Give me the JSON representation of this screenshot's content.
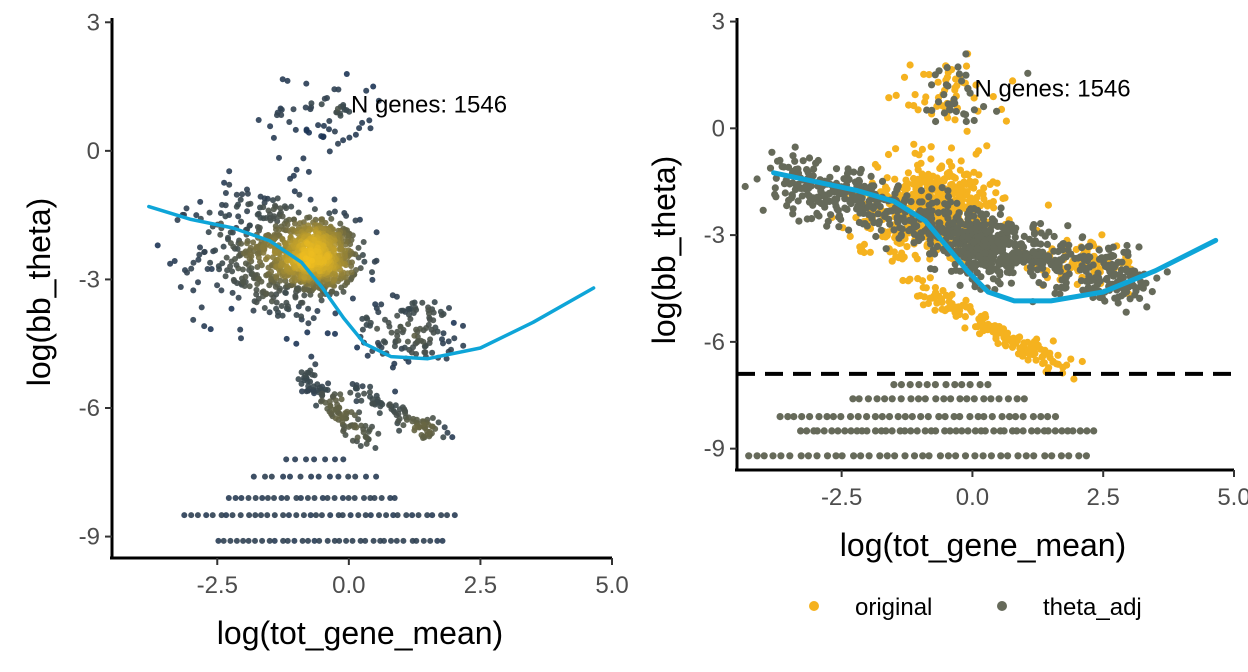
{
  "chart_data": [
    {
      "type": "scatter",
      "panel": "left",
      "xlabel": "log(tot_gene_mean)",
      "ylabel": "log(bb_theta)",
      "xlim": [
        -4.5,
        5.0
      ],
      "ylim": [
        -9.5,
        3.1
      ],
      "x_ticks": [
        -2.5,
        0.0,
        2.5,
        5.0
      ],
      "x_tick_labels": [
        "-2.5",
        "0.0",
        "2.5",
        "5.0"
      ],
      "y_ticks": [
        3,
        0,
        -3,
        -6,
        -9
      ],
      "y_tick_labels": [
        "3",
        "0",
        "-3",
        "-6",
        "-9"
      ],
      "annotation": {
        "text": "N genes: 1546",
        "x": 0.04,
        "y": 0.9
      },
      "point_color_low": "#1d3557",
      "point_color_high": "#f2c01e",
      "color_encoding": "point density",
      "trend_color": "#0ea5d8",
      "trend": [
        {
          "x": -3.8,
          "y": -1.3
        },
        {
          "x": -3.0,
          "y": -1.6
        },
        {
          "x": -2.2,
          "y": -1.8
        },
        {
          "x": -1.5,
          "y": -2.1
        },
        {
          "x": -0.9,
          "y": -2.6
        },
        {
          "x": -0.5,
          "y": -3.2
        },
        {
          "x": -0.1,
          "y": -3.9
        },
        {
          "x": 0.3,
          "y": -4.5
        },
        {
          "x": 0.8,
          "y": -4.8
        },
        {
          "x": 1.5,
          "y": -4.85
        },
        {
          "x": 2.5,
          "y": -4.6
        },
        {
          "x": 3.5,
          "y": -4.0
        },
        {
          "x": 4.65,
          "y": -3.2
        }
      ],
      "clusters": [
        {
          "cx": -0.6,
          "cy": -2.5,
          "sx": 0.75,
          "sy": 0.9,
          "n": 650,
          "kind": "blob"
        },
        {
          "cx": -1.6,
          "cy": -2.4,
          "sx": 1.3,
          "sy": 1.6,
          "n": 380,
          "kind": "blob"
        },
        {
          "cx": 1.2,
          "cy": -4.2,
          "sx": 1.2,
          "sy": 0.8,
          "n": 120,
          "kind": "blob"
        },
        {
          "x0": -0.9,
          "y0": -5.2,
          "x1": 0.4,
          "y1": -6.8,
          "n": 110,
          "kind": "line",
          "jitter": 0.12
        },
        {
          "x0": 0.0,
          "y0": -5.5,
          "x1": 1.8,
          "y1": -6.7,
          "n": 90,
          "kind": "line",
          "jitter": 0.1
        },
        {
          "cx": -0.5,
          "cy": 0.8,
          "sx": 1.2,
          "sy": 1.1,
          "n": 60,
          "kind": "blob"
        }
      ],
      "discrete_rows": [
        {
          "y": -9.1,
          "xmin": -2.5,
          "xmax": 1.8,
          "n": 36
        },
        {
          "y": -8.5,
          "xmin": -3.1,
          "xmax": 2.0,
          "n": 40
        },
        {
          "y": -8.1,
          "xmin": -2.3,
          "xmax": 0.9,
          "n": 26
        },
        {
          "y": -7.6,
          "xmin": -1.8,
          "xmax": 0.5,
          "n": 14
        },
        {
          "y": -7.2,
          "xmin": -1.2,
          "xmax": -0.1,
          "n": 7
        }
      ]
    },
    {
      "type": "scatter",
      "panel": "right",
      "xlabel": "log(tot_gene_mean)",
      "ylabel": "log(bb_theta)",
      "xlim": [
        -4.5,
        5.0
      ],
      "ylim": [
        -9.6,
        3.1
      ],
      "x_ticks": [
        -2.5,
        0.0,
        2.5,
        5.0
      ],
      "x_tick_labels": [
        "-2.5",
        "0.0",
        "2.5",
        "5.0"
      ],
      "y_ticks": [
        3,
        0,
        -3,
        -6,
        -9
      ],
      "y_tick_labels": [
        "3",
        "0",
        "-3",
        "-6",
        "-9"
      ],
      "annotation": {
        "text": "N genes: 1546",
        "x": 0.04,
        "y": 0.9
      },
      "threshold_line": {
        "y": -6.9,
        "style": "dashed"
      },
      "trend_color": "#0ea5d8",
      "trend": [
        {
          "x": -3.8,
          "y": -1.25
        },
        {
          "x": -3.0,
          "y": -1.5
        },
        {
          "x": -2.2,
          "y": -1.75
        },
        {
          "x": -1.5,
          "y": -2.05
        },
        {
          "x": -0.9,
          "y": -2.6
        },
        {
          "x": -0.5,
          "y": -3.3
        },
        {
          "x": -0.1,
          "y": -4.0
        },
        {
          "x": 0.3,
          "y": -4.6
        },
        {
          "x": 0.8,
          "y": -4.85
        },
        {
          "x": 1.5,
          "y": -4.85
        },
        {
          "x": 2.5,
          "y": -4.6
        },
        {
          "x": 3.5,
          "y": -4.0
        },
        {
          "x": 4.65,
          "y": -3.15
        }
      ],
      "series": [
        {
          "name": "original",
          "color": "#f5b21f",
          "clusters": [
            {
              "cx": -0.8,
              "cy": -2.3,
              "sx": 1.2,
              "sy": 1.3,
              "n": 600,
              "kind": "blob"
            },
            {
              "x0": -1.0,
              "y0": -4.5,
              "x1": 1.8,
              "y1": -6.8,
              "n": 160,
              "kind": "line",
              "jitter": 0.15
            },
            {
              "cx": 2.0,
              "cy": -3.8,
              "sx": 1.0,
              "sy": 0.6,
              "n": 90,
              "kind": "blob"
            },
            {
              "cx": -0.5,
              "cy": 1.0,
              "sx": 1.1,
              "sy": 0.9,
              "n": 50,
              "kind": "blob"
            }
          ]
        },
        {
          "name": "theta_adj",
          "color": "#666a5a",
          "clusters": [
            {
              "x0": -3.6,
              "y0": -1.4,
              "x1": 3.2,
              "y1": -4.4,
              "n": 700,
              "kind": "band",
              "jitter": 0.25
            },
            {
              "cx": 0.2,
              "cy": -3.4,
              "sx": 0.9,
              "sy": 0.9,
              "n": 220,
              "kind": "blob"
            },
            {
              "cx": -0.3,
              "cy": 0.9,
              "sx": 0.8,
              "sy": 0.9,
              "n": 35,
              "kind": "blob"
            }
          ],
          "discrete_rows": [
            {
              "y": -9.2,
              "xmin": -4.3,
              "xmax": 2.2,
              "n": 40
            },
            {
              "y": -8.5,
              "xmin": -3.3,
              "xmax": 2.3,
              "n": 48
            },
            {
              "y": -8.1,
              "xmin": -3.7,
              "xmax": 1.6,
              "n": 36
            },
            {
              "y": -7.6,
              "xmin": -2.3,
              "xmax": 1.0,
              "n": 22
            },
            {
              "y": -7.2,
              "xmin": -1.5,
              "xmax": 0.3,
              "n": 12
            }
          ]
        }
      ],
      "legend": {
        "position": "bottom",
        "entries": [
          "original",
          "theta_adj"
        ]
      }
    }
  ]
}
